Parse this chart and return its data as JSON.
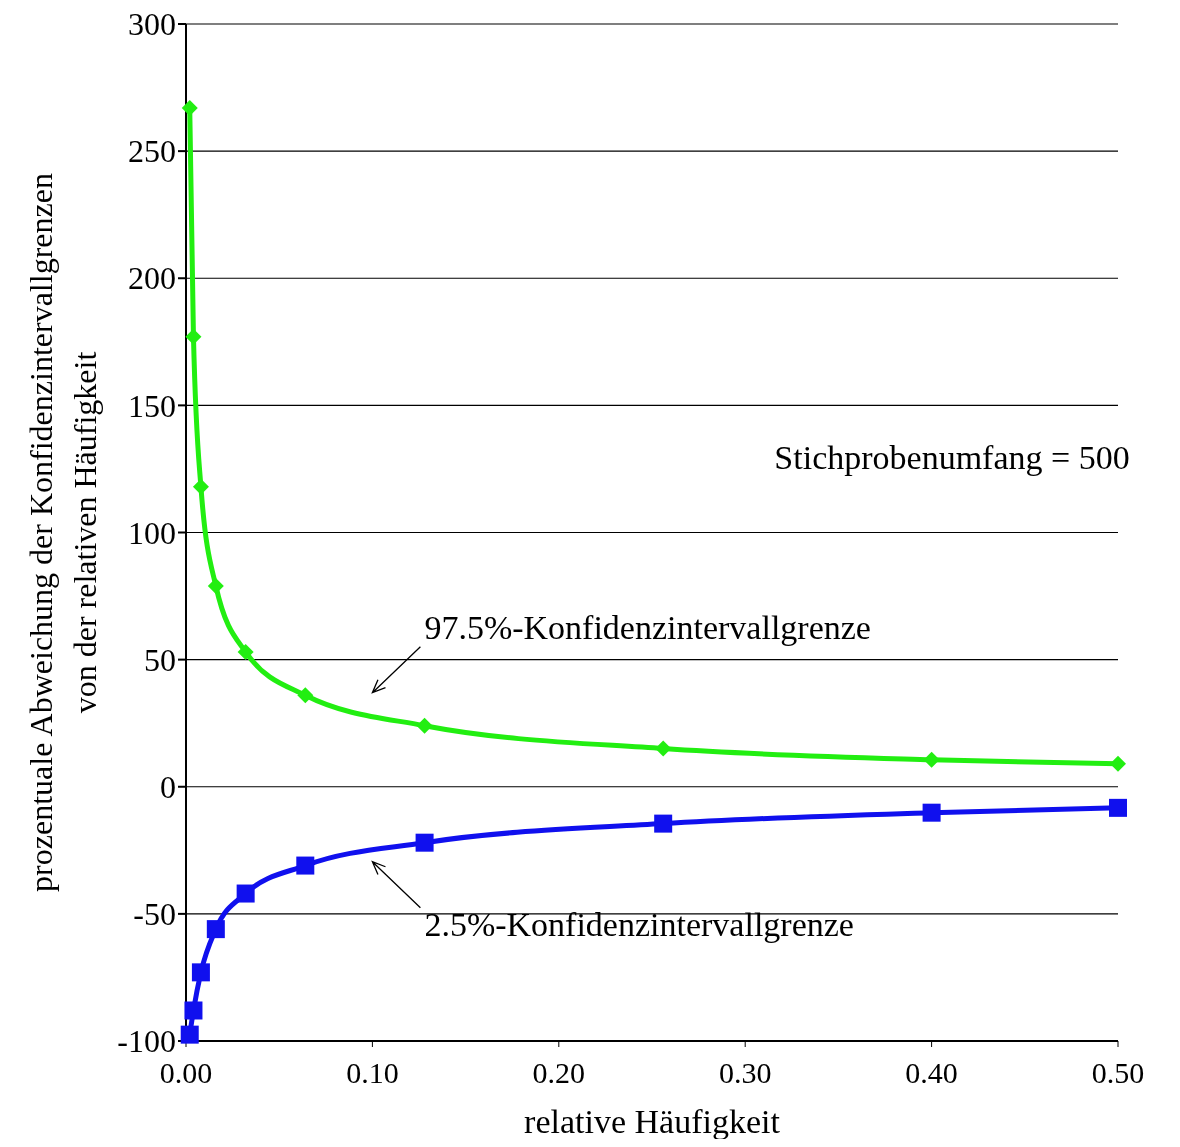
{
  "chart_data": {
    "type": "line",
    "xlabel": "relative Häufigkeit",
    "ylabel": "prozentuale Abweichung der Konfidenzintervallgrenzen von der relativen Häufigkeit",
    "xlim": [
      0,
      0.5
    ],
    "xticks": [
      {
        "value": 0,
        "label": "0.00"
      },
      {
        "value": 0.1,
        "label": "0.10"
      },
      {
        "value": 0.2,
        "label": "0.20"
      },
      {
        "value": 0.3,
        "label": "0.30"
      },
      {
        "value": 0.4,
        "label": "0.40"
      },
      {
        "value": 0.5,
        "label": "0.50"
      }
    ],
    "ylim": [
      -100,
      300
    ],
    "yticks": [
      -100,
      -50,
      0,
      50,
      100,
      150,
      200,
      250,
      300
    ],
    "grid": "y",
    "series": [
      {
        "color": "#22ee11",
        "marker": "diamond",
        "x": [
          0.002,
          0.004,
          0.008,
          0.016,
          0.032,
          0.064,
          0.128,
          0.256,
          0.4,
          0.5
        ],
        "values": [
          267,
          177,
          118,
          79,
          53,
          36,
          24,
          15,
          10.6,
          9
        ]
      },
      {
        "color": "#1010ee",
        "marker": "square",
        "x": [
          0.002,
          0.004,
          0.008,
          0.016,
          0.032,
          0.064,
          0.128,
          0.256,
          0.4,
          0.5
        ],
        "values": [
          -97.5,
          -88,
          -73,
          -56,
          -42,
          -31,
          -22,
          -14.5,
          -10.2,
          -8.3
        ]
      }
    ],
    "annotations": [
      "Stichprobenumfang = 500",
      "97.5%-Konfidenzintervallgrenze",
      "2.5%-Konfidenzintervallgrenze"
    ]
  }
}
